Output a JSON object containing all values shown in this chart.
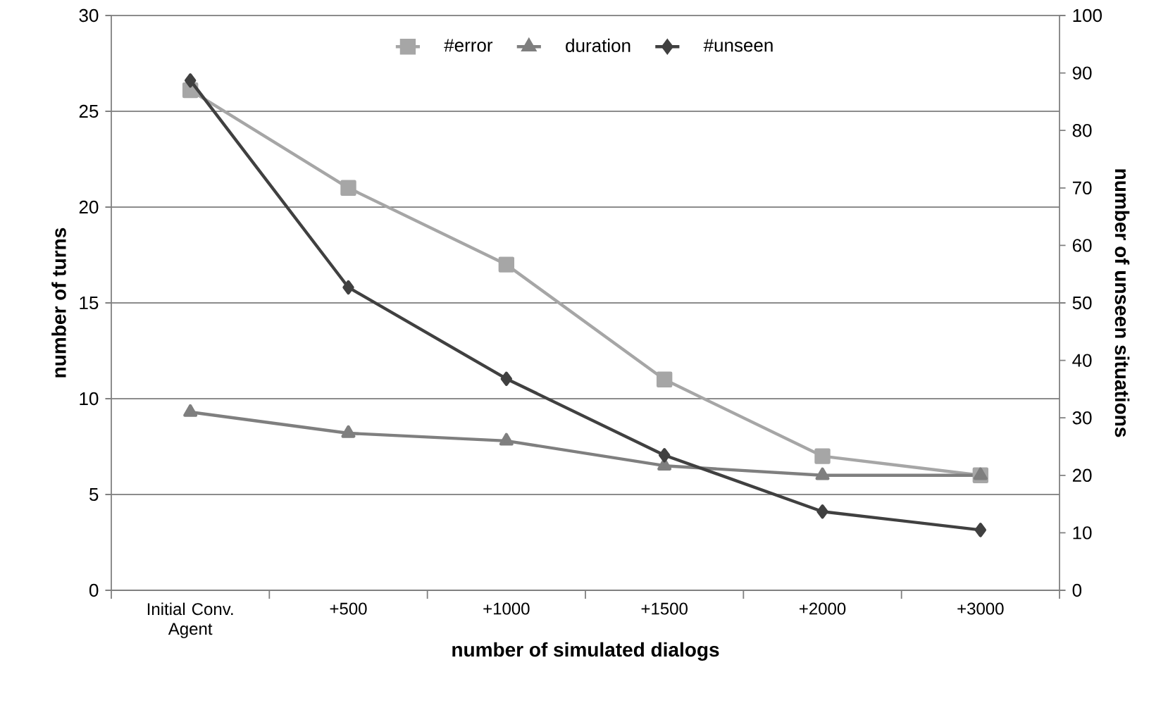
{
  "chart_data": {
    "type": "line",
    "categories": [
      "Initial Conv. Agent",
      "+500",
      "+1000",
      "+1500",
      "+2000",
      "+3000"
    ],
    "xlabel": "number of simulated dialogs",
    "ylabel": "number of turns",
    "y2label": "number of unseen situations",
    "ylim": [
      0,
      30
    ],
    "yticks": [
      0,
      5,
      10,
      15,
      20,
      25,
      30
    ],
    "y2lim": [
      0,
      100
    ],
    "y2ticks": [
      0,
      10,
      20,
      30,
      40,
      50,
      60,
      70,
      80,
      90,
      100
    ],
    "grid": "y",
    "legend": "top",
    "series": [
      {
        "name": "#error",
        "color": "#a6a6a6",
        "marker": "square",
        "values": [
          26.1,
          21.0,
          17.0,
          11.0,
          7.0,
          6.0
        ]
      },
      {
        "name": "duration",
        "color": "#7f7f7f",
        "marker": "triangle",
        "values": [
          9.3,
          8.2,
          7.8,
          6.5,
          6.0,
          6.0
        ]
      },
      {
        "name": "#unseen",
        "color": "#404040",
        "marker": "diamond",
        "axis": "y2",
        "values": [
          88.7,
          52.7,
          36.8,
          23.5,
          13.7,
          10.5
        ]
      }
    ]
  }
}
